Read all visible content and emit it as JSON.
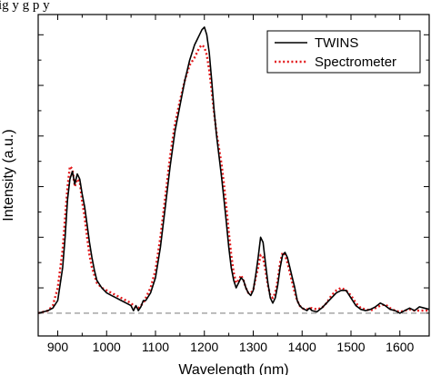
{
  "caption_fragment": "ig         y g                    p                   y",
  "chart_data": {
    "type": "line",
    "title": "",
    "xlabel": "Wavelength (nm)",
    "ylabel": "Intensity (a.u.)",
    "xlim": [
      860,
      1660
    ],
    "ylim": [
      -0.09,
      1.18
    ],
    "xticks": [
      "900",
      "1000",
      "1100",
      "1200",
      "1300",
      "1400",
      "1500",
      "1600"
    ],
    "yticks_labeled": false,
    "grid": false,
    "legend_position": "top-right",
    "baseline": {
      "y": 0,
      "style": "dashed",
      "color": "#888888"
    },
    "series": [
      {
        "name": "TWINS",
        "color": "#000000",
        "style": "solid",
        "x": [
          860,
          870,
          880,
          890,
          900,
          910,
          915,
          920,
          925,
          930,
          935,
          940,
          945,
          950,
          955,
          960,
          965,
          970,
          975,
          980,
          990,
          1000,
          1010,
          1020,
          1030,
          1040,
          1050,
          1055,
          1060,
          1065,
          1070,
          1075,
          1080,
          1090,
          1100,
          1110,
          1120,
          1130,
          1140,
          1150,
          1160,
          1170,
          1180,
          1185,
          1190,
          1195,
          1200,
          1205,
          1210,
          1215,
          1220,
          1225,
          1230,
          1235,
          1240,
          1245,
          1250,
          1255,
          1260,
          1265,
          1270,
          1275,
          1280,
          1285,
          1290,
          1295,
          1300,
          1305,
          1310,
          1315,
          1320,
          1325,
          1330,
          1335,
          1340,
          1345,
          1350,
          1355,
          1360,
          1365,
          1370,
          1375,
          1380,
          1385,
          1390,
          1395,
          1400,
          1405,
          1410,
          1415,
          1420,
          1430,
          1440,
          1450,
          1460,
          1470,
          1480,
          1490,
          1500,
          1510,
          1520,
          1530,
          1540,
          1550,
          1560,
          1570,
          1580,
          1590,
          1600,
          1610,
          1620,
          1630,
          1640,
          1650,
          1660
        ],
        "y": [
          0.0,
          0.005,
          0.01,
          0.02,
          0.05,
          0.18,
          0.3,
          0.45,
          0.53,
          0.56,
          0.51,
          0.55,
          0.53,
          0.47,
          0.42,
          0.35,
          0.28,
          0.22,
          0.17,
          0.13,
          0.1,
          0.08,
          0.07,
          0.06,
          0.05,
          0.04,
          0.03,
          0.01,
          0.03,
          0.01,
          0.025,
          0.05,
          0.05,
          0.08,
          0.14,
          0.26,
          0.42,
          0.58,
          0.72,
          0.82,
          0.92,
          1.0,
          1.06,
          1.08,
          1.1,
          1.12,
          1.13,
          1.1,
          1.03,
          0.92,
          0.8,
          0.7,
          0.62,
          0.54,
          0.45,
          0.36,
          0.26,
          0.18,
          0.13,
          0.1,
          0.12,
          0.14,
          0.13,
          0.1,
          0.08,
          0.07,
          0.09,
          0.15,
          0.22,
          0.3,
          0.28,
          0.2,
          0.12,
          0.06,
          0.04,
          0.06,
          0.11,
          0.18,
          0.23,
          0.24,
          0.22,
          0.18,
          0.14,
          0.1,
          0.05,
          0.03,
          0.02,
          0.015,
          0.01,
          0.02,
          0.01,
          0.005,
          0.02,
          0.04,
          0.06,
          0.08,
          0.09,
          0.09,
          0.06,
          0.03,
          0.015,
          0.01,
          0.015,
          0.025,
          0.04,
          0.03,
          0.015,
          0.01,
          0.0,
          0.01,
          0.02,
          0.01,
          0.025,
          0.02,
          0.015
        ]
      },
      {
        "name": "Spectrometer",
        "color": "#e31a1c",
        "style": "dotted",
        "x": [
          860,
          870,
          880,
          890,
          900,
          910,
          915,
          920,
          925,
          930,
          935,
          940,
          945,
          950,
          955,
          960,
          965,
          970,
          975,
          980,
          990,
          1000,
          1010,
          1020,
          1030,
          1040,
          1050,
          1055,
          1060,
          1065,
          1070,
          1075,
          1080,
          1090,
          1100,
          1110,
          1120,
          1130,
          1140,
          1150,
          1160,
          1170,
          1180,
          1185,
          1190,
          1195,
          1200,
          1205,
          1210,
          1215,
          1220,
          1225,
          1230,
          1235,
          1240,
          1245,
          1250,
          1255,
          1260,
          1265,
          1270,
          1275,
          1280,
          1285,
          1290,
          1295,
          1300,
          1305,
          1310,
          1315,
          1320,
          1325,
          1330,
          1335,
          1340,
          1345,
          1350,
          1355,
          1360,
          1365,
          1370,
          1375,
          1380,
          1385,
          1390,
          1395,
          1400,
          1405,
          1410,
          1415,
          1420,
          1430,
          1440,
          1450,
          1460,
          1470,
          1480,
          1490,
          1500,
          1510,
          1520,
          1530,
          1540,
          1550,
          1560,
          1570,
          1580,
          1590,
          1600,
          1610,
          1620,
          1630,
          1640,
          1650,
          1660
        ],
        "y": [
          0.0,
          0.005,
          0.01,
          0.03,
          0.1,
          0.25,
          0.38,
          0.5,
          0.58,
          0.57,
          0.5,
          0.53,
          0.52,
          0.44,
          0.38,
          0.3,
          0.23,
          0.18,
          0.15,
          0.12,
          0.1,
          0.09,
          0.08,
          0.07,
          0.06,
          0.05,
          0.04,
          0.03,
          0.02,
          0.02,
          0.03,
          0.04,
          0.06,
          0.1,
          0.17,
          0.3,
          0.46,
          0.62,
          0.75,
          0.84,
          0.92,
          0.98,
          1.01,
          1.03,
          1.05,
          1.06,
          1.05,
          1.02,
          0.96,
          0.88,
          0.79,
          0.71,
          0.65,
          0.59,
          0.51,
          0.42,
          0.32,
          0.23,
          0.16,
          0.12,
          0.13,
          0.15,
          0.13,
          0.1,
          0.08,
          0.08,
          0.09,
          0.14,
          0.18,
          0.23,
          0.22,
          0.17,
          0.11,
          0.07,
          0.06,
          0.08,
          0.13,
          0.2,
          0.24,
          0.23,
          0.2,
          0.16,
          0.12,
          0.08,
          0.05,
          0.03,
          0.02,
          0.015,
          0.015,
          0.02,
          0.02,
          0.015,
          0.02,
          0.04,
          0.07,
          0.09,
          0.1,
          0.09,
          0.07,
          0.04,
          0.02,
          0.015,
          0.01,
          0.02,
          0.03,
          0.035,
          0.02,
          0.01,
          0.005,
          0.01,
          0.015,
          0.01,
          0.01,
          0.01,
          0.01
        ]
      }
    ]
  }
}
